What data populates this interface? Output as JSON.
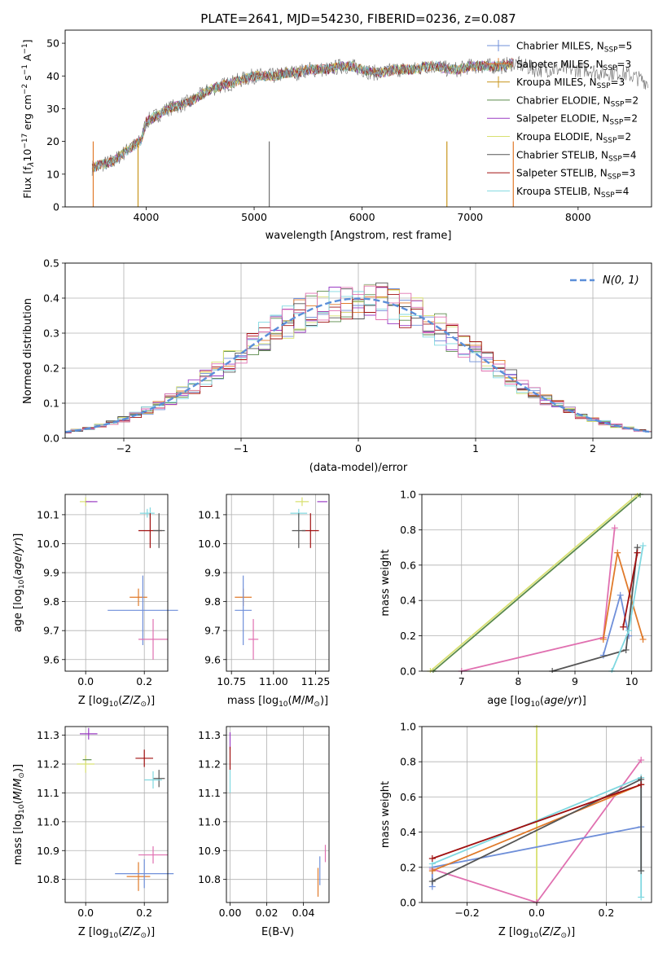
{
  "figure": {
    "title": "PLATE=2641, MJD=54230, FIBERID=0236, z=0.087"
  },
  "colors": {
    "Chabrier MILES": "#6f8fd9",
    "Salpeter MILES": "#e07a2a",
    "Kroupa MILES": "#c8961e",
    "Chabrier ELODIE": "#5a8a4a",
    "Salpeter ELODIE": "#9a3cc4",
    "Kroupa ELODIE": "#d8e070",
    "Chabrier STELIB": "#555555",
    "Salpeter STELIB": "#a01010",
    "Kroupa STELIB": "#80d8e0",
    "pink": "#e070b0",
    "normal": "#5b8fd9"
  },
  "chart_data": [
    {
      "id": "spectrum",
      "type": "line",
      "title": "PLATE=2641, MJD=54230, FIBERID=0236, z=0.087",
      "xlabel": "wavelength [Angstrom, rest frame]",
      "ylabel": "Flux [f_λ10^-17 erg cm^-2 s^-1 A^-1]",
      "xlim": [
        3250,
        8680
      ],
      "ylim": [
        0,
        54
      ],
      "xticks": [
        "4000",
        "5000",
        "6000",
        "7000",
        "8000"
      ],
      "yticks": [
        "0",
        "10",
        "20",
        "30",
        "40",
        "50"
      ],
      "grid": false,
      "legend_position": "right",
      "continuum": [
        [
          3500,
          12
        ],
        [
          3700,
          14
        ],
        [
          3850,
          18
        ],
        [
          3950,
          20
        ],
        [
          4000,
          26
        ],
        [
          4100,
          28
        ],
        [
          4200,
          30
        ],
        [
          4300,
          31
        ],
        [
          4400,
          32
        ],
        [
          4500,
          34
        ],
        [
          4600,
          36
        ],
        [
          4700,
          37
        ],
        [
          4800,
          38
        ],
        [
          4900,
          39
        ],
        [
          5000,
          40
        ],
        [
          5100,
          40
        ],
        [
          5200,
          40
        ],
        [
          5300,
          41
        ],
        [
          5400,
          41
        ],
        [
          5500,
          42
        ],
        [
          5600,
          42
        ],
        [
          5700,
          42
        ],
        [
          5800,
          43
        ],
        [
          5900,
          43
        ],
        [
          6000,
          42
        ],
        [
          6100,
          41
        ],
        [
          6200,
          41
        ],
        [
          6300,
          42
        ],
        [
          6400,
          42
        ],
        [
          6500,
          42
        ],
        [
          6600,
          43
        ],
        [
          6700,
          43
        ],
        [
          6800,
          42
        ],
        [
          6900,
          42
        ],
        [
          7000,
          43
        ],
        [
          7100,
          43
        ],
        [
          7200,
          43
        ],
        [
          7300,
          43
        ],
        [
          7400,
          44
        ],
        [
          7500,
          43
        ],
        [
          7600,
          42
        ],
        [
          7700,
          42
        ],
        [
          7800,
          42
        ],
        [
          7900,
          42
        ],
        [
          8000,
          42
        ],
        [
          8100,
          42
        ],
        [
          8200,
          41
        ],
        [
          8300,
          41
        ],
        [
          8400,
          41
        ],
        [
          8500,
          40
        ],
        [
          8650,
          38
        ]
      ],
      "series": [
        {
          "name": "Chabrier MILES, N_SSP=5",
          "label_main": "Chabrier MILES, N",
          "label_sub": "SSP",
          "label_tail": "=5",
          "color": "#6f8fd9"
        },
        {
          "name": "Salpeter MILES, N_SSP=3",
          "label_main": "Salpeter MILES, N",
          "label_sub": "SSP",
          "label_tail": "=3",
          "color": "#e07a2a"
        },
        {
          "name": "Kroupa MILES, N_SSP=3",
          "label_main": "Kroupa MILES, N",
          "label_sub": "SSP",
          "label_tail": "=3",
          "color": "#c8961e"
        },
        {
          "name": "Chabrier ELODIE, N_SSP=2",
          "label_main": "Chabrier ELODIE, N",
          "label_sub": "SSP",
          "label_tail": "=2",
          "color": "#5a8a4a"
        },
        {
          "name": "Salpeter ELODIE, N_SSP=2",
          "label_main": "Salpeter ELODIE, N",
          "label_sub": "SSP",
          "label_tail": "=2",
          "color": "#9a3cc4"
        },
        {
          "name": "Kroupa ELODIE, N_SSP=2",
          "label_main": "Kroupa ELODIE, N",
          "label_sub": "SSP",
          "label_tail": "=2",
          "color": "#d8e070"
        },
        {
          "name": "Chabrier STELIB, N_SSP=4",
          "label_main": "Chabrier STELIB, N",
          "label_sub": "SSP",
          "label_tail": "=4",
          "color": "#555555"
        },
        {
          "name": "Salpeter STELIB, N_SSP=3",
          "label_main": "Salpeter STELIB, N",
          "label_sub": "SSP",
          "label_tail": "=3",
          "color": "#a01010"
        },
        {
          "name": "Kroupa STELIB, N_SSP=4",
          "label_main": "Kroupa STELIB, N",
          "label_sub": "SSP",
          "label_tail": "=4",
          "color": "#80d8e0"
        }
      ]
    },
    {
      "id": "residuals",
      "type": "line",
      "xlabel": "(data-model)/error",
      "ylabel": "Normed distribution",
      "xlim": [
        -2.5,
        2.5
      ],
      "ylim": [
        0,
        0.5
      ],
      "xticks": [
        "−2",
        "−1",
        "0",
        "1",
        "2"
      ],
      "yticks": [
        "0.0",
        "0.1",
        "0.2",
        "0.3",
        "0.4",
        "0.5"
      ],
      "grid": true,
      "legend_position": "top-right",
      "normal_label": "N(0, 1)",
      "hist_colors": [
        "#6f8fd9",
        "#e07a2a",
        "#5a8a4a",
        "#9a3cc4",
        "#d8e070",
        "#555555",
        "#a01010",
        "#80d8e0",
        "#e070b0"
      ]
    },
    {
      "id": "age_vs_Z",
      "type": "scatter",
      "xlabel": "Z [log10(Z/Z⊙)]",
      "ylabel": "age  [log10(age/yr)]",
      "xlim": [
        -0.07,
        0.28
      ],
      "ylim": [
        9.56,
        10.17
      ],
      "xticks": [
        0.0,
        0.2
      ],
      "yticks": [
        9.6,
        9.7,
        9.8,
        9.9,
        10.0,
        10.1
      ],
      "points": [
        {
          "x": 0.0,
          "y": 10.145,
          "xerr": 0.02,
          "yerr": 0.015,
          "color": "#d8e070"
        },
        {
          "x": 0.02,
          "y": 10.145,
          "xerr": 0.02,
          "yerr": 0.0,
          "color": "#9a3cc4"
        },
        {
          "x": 0.21,
          "y": 10.105,
          "xerr": 0.025,
          "yerr": 0.015,
          "color": "#80d8e0"
        },
        {
          "x": 0.22,
          "y": 10.105,
          "xerr": 0.0,
          "yerr": 0.02,
          "color": "#80d8e0"
        },
        {
          "x": 0.22,
          "y": 10.045,
          "xerr": 0.04,
          "yerr": 0.06,
          "color": "#a01010"
        },
        {
          "x": 0.25,
          "y": 10.045,
          "xerr": 0.02,
          "yerr": 0.06,
          "color": "#555555"
        },
        {
          "x": 0.18,
          "y": 9.815,
          "xerr": 0.03,
          "yerr": 0.03,
          "color": "#e07a2a"
        },
        {
          "x": 0.195,
          "y": 9.77,
          "xerr": 0.12,
          "yerr": 0.12,
          "color": "#6f8fd9"
        },
        {
          "x": 0.23,
          "y": 9.67,
          "xerr": 0.05,
          "yerr": 0.07,
          "color": "#e070b0"
        }
      ]
    },
    {
      "id": "age_vs_mass",
      "type": "scatter",
      "xlabel": "mass [log10(M/M⊙)]",
      "ylabel": "",
      "xlim": [
        10.72,
        11.33
      ],
      "ylim": [
        9.56,
        10.17
      ],
      "xticks": [
        10.75,
        11.0,
        11.25
      ],
      "yticks": [
        9.6,
        9.7,
        9.8,
        9.9,
        10.0,
        10.1
      ],
      "points": [
        {
          "x": 11.17,
          "y": 10.145,
          "xerr": 0.04,
          "yerr": 0.015,
          "color": "#d8e070"
        },
        {
          "x": 11.29,
          "y": 10.145,
          "xerr": 0.03,
          "yerr": 0.0,
          "color": "#9a3cc4"
        },
        {
          "x": 11.15,
          "y": 10.105,
          "xerr": 0.05,
          "yerr": 0.015,
          "color": "#80d8e0"
        },
        {
          "x": 11.22,
          "y": 10.045,
          "xerr": 0.05,
          "yerr": 0.06,
          "color": "#a01010"
        },
        {
          "x": 11.15,
          "y": 10.045,
          "xerr": 0.04,
          "yerr": 0.06,
          "color": "#555555"
        },
        {
          "x": 10.82,
          "y": 9.815,
          "xerr": 0.05,
          "yerr": 0.03,
          "color": "#e07a2a"
        },
        {
          "x": 10.82,
          "y": 9.77,
          "xerr": 0.05,
          "yerr": 0.12,
          "color": "#6f8fd9"
        },
        {
          "x": 10.88,
          "y": 9.67,
          "xerr": 0.03,
          "yerr": 0.07,
          "color": "#e070b0"
        }
      ]
    },
    {
      "id": "mass_weight_vs_age",
      "type": "line",
      "xlabel": "age  [log10(age/yr)]",
      "ylabel": "mass weight",
      "xlim": [
        6.3,
        10.35
      ],
      "ylim": [
        0,
        1
      ],
      "xticks": [
        7,
        8,
        9,
        10
      ],
      "yticks": [
        0.0,
        0.2,
        0.4,
        0.6,
        0.8,
        1.0
      ],
      "grid": true,
      "series": [
        {
          "color": "#5a8a4a",
          "points": [
            [
              6.5,
              0.0
            ],
            [
              10.15,
              1.0
            ]
          ]
        },
        {
          "color": "#d8e070",
          "points": [
            [
              6.45,
              0.0
            ],
            [
              10.1,
              1.0
            ]
          ]
        },
        {
          "color": "#e070b0",
          "points": [
            [
              7.0,
              0.0
            ],
            [
              9.5,
              0.19
            ],
            [
              9.7,
              0.81
            ]
          ]
        },
        {
          "color": "#e07a2a",
          "points": [
            [
              9.5,
              0.18
            ],
            [
              9.75,
              0.67
            ],
            [
              10.2,
              0.18
            ]
          ]
        },
        {
          "color": "#6f8fd9",
          "points": [
            [
              9.5,
              0.09
            ],
            [
              9.8,
              0.43
            ],
            [
              9.95,
              0.2
            ]
          ]
        },
        {
          "color": "#555555",
          "points": [
            [
              8.6,
              0.0
            ],
            [
              9.9,
              0.12
            ],
            [
              10.1,
              0.7
            ]
          ]
        },
        {
          "color": "#a01010",
          "points": [
            [
              9.85,
              0.25
            ],
            [
              10.1,
              0.67
            ]
          ]
        },
        {
          "color": "#80d8e0",
          "points": [
            [
              9.65,
              0.0
            ],
            [
              9.95,
              0.23
            ],
            [
              10.2,
              0.71
            ]
          ]
        }
      ]
    },
    {
      "id": "mass_vs_Z",
      "type": "scatter",
      "xlabel": "Z [log10(Z/Z⊙)]",
      "ylabel": "mass [log10(M/M⊙)]",
      "xlim": [
        -0.07,
        0.28
      ],
      "ylim": [
        10.72,
        11.33
      ],
      "xticks": [
        0.0,
        0.2
      ],
      "yticks": [
        10.8,
        10.9,
        11.0,
        11.1,
        11.2,
        11.3
      ],
      "points": [
        {
          "x": 0.01,
          "y": 11.305,
          "xerr": 0.03,
          "yerr": 0.02,
          "color": "#9a3cc4"
        },
        {
          "x": 0.0,
          "y": 11.2,
          "xerr": 0.03,
          "yerr": 0.03,
          "color": "#d8e070"
        },
        {
          "x": 0.005,
          "y": 11.215,
          "xerr": 0.015,
          "yerr": 0.0,
          "color": "#5a8a4a"
        },
        {
          "x": 0.2,
          "y": 11.22,
          "xerr": 0.03,
          "yerr": 0.03,
          "color": "#a01010"
        },
        {
          "x": 0.25,
          "y": 11.15,
          "xerr": 0.02,
          "yerr": 0.03,
          "color": "#555555"
        },
        {
          "x": 0.23,
          "y": 11.145,
          "xerr": 0.03,
          "yerr": 0.03,
          "color": "#80d8e0"
        },
        {
          "x": 0.23,
          "y": 10.885,
          "xerr": 0.05,
          "yerr": 0.03,
          "color": "#e070b0"
        },
        {
          "x": 0.18,
          "y": 10.81,
          "xerr": 0.04,
          "yerr": 0.05,
          "color": "#e07a2a"
        },
        {
          "x": 0.2,
          "y": 10.82,
          "xerr": 0.1,
          "yerr": 0.05,
          "color": "#6f8fd9"
        }
      ]
    },
    {
      "id": "mass_vs_EBV",
      "type": "scatter",
      "xlabel": "E(B-V)",
      "ylabel": "",
      "xlim": [
        -0.002,
        0.054
      ],
      "ylim": [
        10.72,
        11.33
      ],
      "xticks": [
        0.0,
        0.02,
        0.04
      ],
      "yticks": [
        10.8,
        10.9,
        11.0,
        11.1,
        11.2,
        11.3
      ],
      "points": [
        {
          "x": 0.0,
          "y": 11.28,
          "xerr": 0.0,
          "yerr": 0.03,
          "color": "#9a3cc4"
        },
        {
          "x": 0.0,
          "y": 11.22,
          "xerr": 0.0,
          "yerr": 0.04,
          "color": "#a01010"
        },
        {
          "x": 0.0,
          "y": 11.14,
          "xerr": 0.0,
          "yerr": 0.04,
          "color": "#80d8e0"
        },
        {
          "x": 0.052,
          "y": 10.89,
          "xerr": 0.0,
          "yerr": 0.03,
          "color": "#e070b0"
        },
        {
          "x": 0.049,
          "y": 10.83,
          "xerr": 0.0,
          "yerr": 0.05,
          "color": "#6f8fd9"
        },
        {
          "x": 0.048,
          "y": 10.79,
          "xerr": 0.0,
          "yerr": 0.05,
          "color": "#e07a2a"
        }
      ]
    },
    {
      "id": "mass_weight_vs_Z",
      "type": "line",
      "xlabel": "Z [log10(Z/Z⊙)]",
      "ylabel": "mass weight",
      "xlim": [
        -0.33,
        0.33
      ],
      "ylim": [
        0,
        1
      ],
      "xticks": [
        "−0.2",
        "0.0",
        "0.2"
      ],
      "yticks": [
        0.0,
        0.2,
        0.4,
        0.6,
        0.8,
        1.0
      ],
      "grid": true,
      "series": [
        {
          "color": "#d8e070",
          "points": [
            [
              0.0,
              0.0
            ],
            [
              0.0,
              1.0
            ]
          ]
        },
        {
          "color": "#e070b0",
          "points": [
            [
              -0.3,
              0.19
            ],
            [
              0.0,
              0.0
            ],
            [
              0.3,
              0.81
            ]
          ]
        },
        {
          "color": "#6f8fd9",
          "points": [
            [
              -0.3,
              0.09
            ],
            [
              -0.3,
              0.2
            ],
            [
              0.3,
              0.43
            ]
          ]
        },
        {
          "color": "#80d8e0",
          "points": [
            [
              -0.3,
              0.22
            ],
            [
              0.3,
              0.71
            ],
            [
              0.3,
              0.03
            ]
          ]
        },
        {
          "color": "#e07a2a",
          "points": [
            [
              -0.3,
              0.18
            ],
            [
              0.3,
              0.67
            ]
          ]
        },
        {
          "color": "#555555",
          "points": [
            [
              -0.3,
              0.12
            ],
            [
              0.3,
              0.7
            ],
            [
              0.3,
              0.18
            ]
          ]
        },
        {
          "color": "#a01010",
          "points": [
            [
              -0.3,
              0.25
            ],
            [
              0.3,
              0.67
            ]
          ]
        }
      ]
    }
  ]
}
